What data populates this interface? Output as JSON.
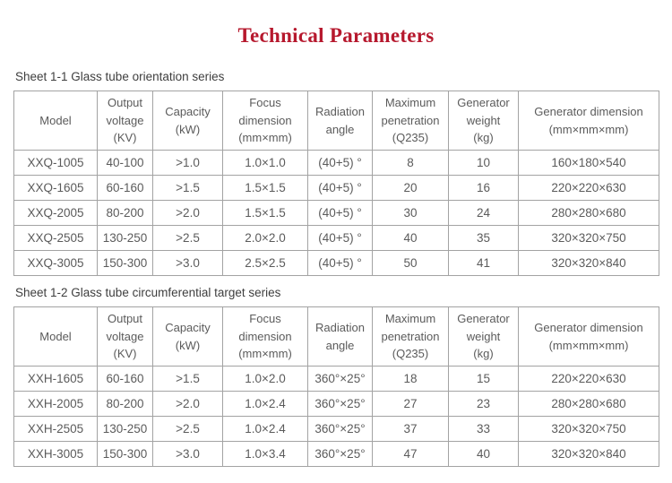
{
  "page": {
    "title": "Technical Parameters",
    "title_color": "#b6182d",
    "text_color": "#5b5b5b",
    "border_color": "#a3a3a3"
  },
  "tables": [
    {
      "caption": "Sheet 1-1 Glass tube orientation series",
      "headers": [
        "Model",
        "Output\nvoltage\n(KV)",
        "Capacity\n(kW)",
        "Focus\ndimension\n(mm×mm)",
        "Radiation\nangle",
        "Maximum\npenetration\n(Q235)",
        "Generator\nweight\n(kg)",
        "Generator dimension\n(mm×mm×mm)"
      ],
      "rows": [
        [
          "XXQ-1005",
          "40-100",
          ">1.0",
          "1.0×1.0",
          "(40+5) °",
          "8",
          "10",
          "160×180×540"
        ],
        [
          "XXQ-1605",
          "60-160",
          ">1.5",
          "1.5×1.5",
          "(40+5) °",
          "20",
          "16",
          "220×220×630"
        ],
        [
          "XXQ-2005",
          "80-200",
          ">2.0",
          "1.5×1.5",
          "(40+5) °",
          "30",
          "24",
          "280×280×680"
        ],
        [
          "XXQ-2505",
          "130-250",
          ">2.5",
          "2.0×2.0",
          "(40+5) °",
          "40",
          "35",
          "320×320×750"
        ],
        [
          "XXQ-3005",
          "150-300",
          ">3.0",
          "2.5×2.5",
          "(40+5) °",
          "50",
          "41",
          "320×320×840"
        ]
      ]
    },
    {
      "caption": "Sheet 1-2 Glass tube circumferential target series",
      "headers": [
        "Model",
        "Output\nvoltage\n(KV)",
        "Capacity\n(kW)",
        "Focus\ndimension\n(mm×mm)",
        "Radiation\nangle",
        "Maximum\npenetration\n(Q235)",
        "Generator\nweight\n(kg)",
        "Generator dimension\n(mm×mm×mm)"
      ],
      "rows": [
        [
          "XXH-1605",
          "60-160",
          ">1.5",
          "1.0×2.0",
          "360°×25°",
          "18",
          "15",
          "220×220×630"
        ],
        [
          "XXH-2005",
          "80-200",
          ">2.0",
          "1.0×2.4",
          "360°×25°",
          "27",
          "23",
          "280×280×680"
        ],
        [
          "XXH-2505",
          "130-250",
          ">2.5",
          "1.0×2.4",
          "360°×25°",
          "37",
          "33",
          "320×320×750"
        ],
        [
          "XXH-3005",
          "150-300",
          ">3.0",
          "1.0×3.4",
          "360°×25°",
          "47",
          "40",
          "320×320×840"
        ]
      ]
    }
  ]
}
